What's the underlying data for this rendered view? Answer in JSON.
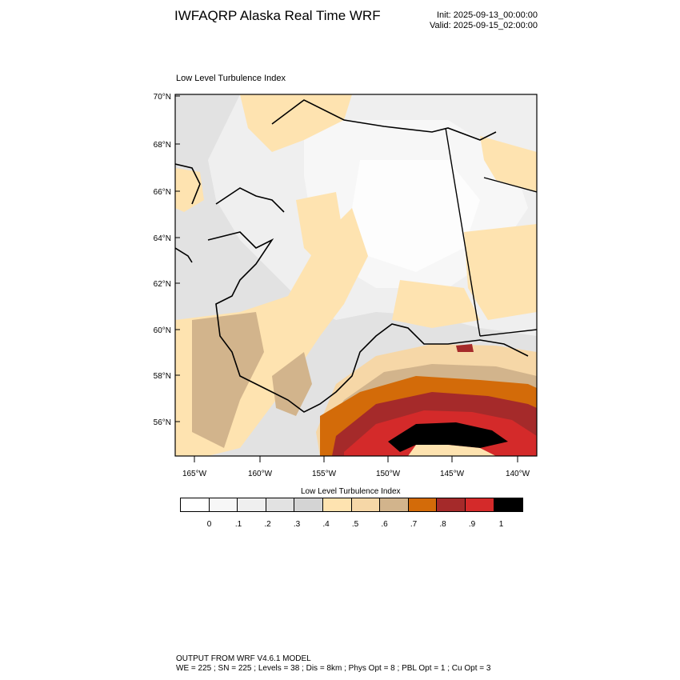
{
  "header": {
    "title": "IWFAQRP Alaska Real Time WRF",
    "init": "Init: 2025-09-13_00:00:00",
    "valid": "Valid: 2025-09-15_02:00:00"
  },
  "plot": {
    "subtitle": "Low Level Turbulence Index",
    "lat_labels": [
      "70°N",
      "68°N",
      "66°N",
      "64°N",
      "62°N",
      "60°N",
      "58°N",
      "56°N"
    ],
    "lon_labels": [
      "165°W",
      "160°W",
      "155°W",
      "150°W",
      "145°W",
      "140°W"
    ]
  },
  "colorbar": {
    "title": "Low Level Turbulence Index",
    "colors": [
      "#ffffff",
      "#f7f7f7",
      "#efefef",
      "#e2e2e2",
      "#d4d4d4",
      "#fee3b0",
      "#f6d7a7",
      "#d2b48c",
      "#d36b09",
      "#a52a2a",
      "#d42a2a",
      "#000000"
    ],
    "ticks": [
      "0",
      ".1",
      ".2",
      ".3",
      ".4",
      ".5",
      ".6",
      ".7",
      ".8",
      ".9",
      "1"
    ]
  },
  "footer": {
    "line1": "OUTPUT FROM WRF V4.6.1 MODEL",
    "line2": "WE = 225 ; SN = 225 ; Levels = 38 ; Dis = 8km ; Phys Opt = 8 ; PBL Opt = 1 ; Cu Opt = 3"
  }
}
